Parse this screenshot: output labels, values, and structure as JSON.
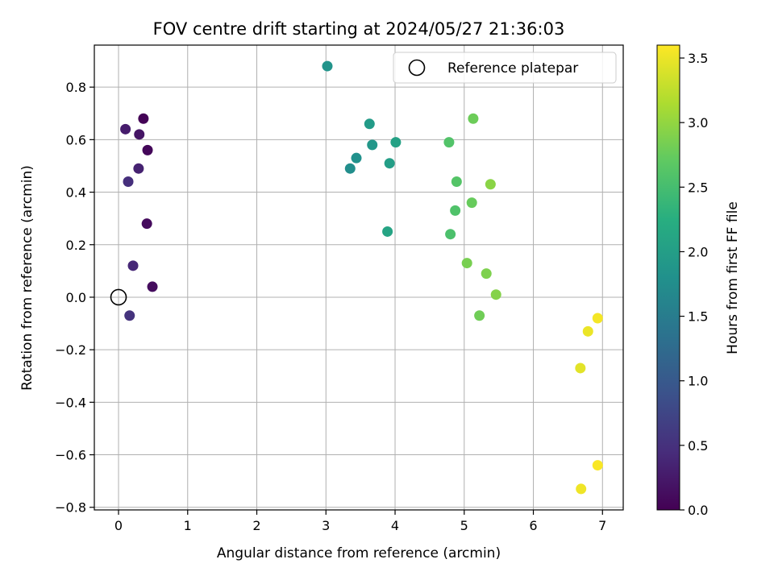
{
  "chart_data": {
    "type": "scatter",
    "title": "FOV centre drift starting at 2024/05/27 21:36:03",
    "xlabel": "Angular distance from reference (arcmin)",
    "ylabel": "Rotation from reference (arcmin)",
    "xlim": [
      -0.35,
      7.3
    ],
    "ylim": [
      -0.81,
      0.96
    ],
    "xticks": [
      0,
      1,
      2,
      3,
      4,
      5,
      6,
      7
    ],
    "yticks": [
      -0.8,
      -0.6,
      -0.4,
      -0.2,
      0.0,
      0.2,
      0.4,
      0.6,
      0.8
    ],
    "grid": true,
    "legend": {
      "position": "top-right",
      "label": "Reference platepar"
    },
    "reference": {
      "x": 0,
      "y": 0
    },
    "colorbar": {
      "label": "Hours from first FF file",
      "range": [
        0,
        3.6
      ],
      "ticks": [
        0.0,
        0.5,
        1.0,
        1.5,
        2.0,
        2.5,
        3.0,
        3.5
      ],
      "colormap": "viridis"
    },
    "points": [
      {
        "x": 0.36,
        "y": 0.68,
        "t": 0.02
      },
      {
        "x": 0.42,
        "y": 0.56,
        "t": 0.06
      },
      {
        "x": 0.41,
        "y": 0.28,
        "t": 0.1
      },
      {
        "x": 0.49,
        "y": 0.04,
        "t": 0.12
      },
      {
        "x": 0.3,
        "y": 0.62,
        "t": 0.2
      },
      {
        "x": 0.1,
        "y": 0.64,
        "t": 0.28
      },
      {
        "x": 0.29,
        "y": 0.49,
        "t": 0.34
      },
      {
        "x": 0.21,
        "y": 0.12,
        "t": 0.4
      },
      {
        "x": 0.14,
        "y": 0.44,
        "t": 0.48
      },
      {
        "x": 0.16,
        "y": -0.07,
        "t": 0.52
      },
      {
        "x": 3.02,
        "y": 0.88,
        "t": 1.85
      },
      {
        "x": 3.63,
        "y": 0.66,
        "t": 1.95
      },
      {
        "x": 3.35,
        "y": 0.49,
        "t": 1.75
      },
      {
        "x": 3.44,
        "y": 0.53,
        "t": 1.8
      },
      {
        "x": 3.67,
        "y": 0.58,
        "t": 1.9
      },
      {
        "x": 4.01,
        "y": 0.59,
        "t": 2.05
      },
      {
        "x": 3.92,
        "y": 0.51,
        "t": 2.0
      },
      {
        "x": 3.89,
        "y": 0.25,
        "t": 2.1
      },
      {
        "x": 4.78,
        "y": 0.59,
        "t": 2.6
      },
      {
        "x": 5.13,
        "y": 0.68,
        "t": 2.78
      },
      {
        "x": 4.89,
        "y": 0.44,
        "t": 2.62
      },
      {
        "x": 5.38,
        "y": 0.43,
        "t": 2.95
      },
      {
        "x": 5.11,
        "y": 0.36,
        "t": 2.75
      },
      {
        "x": 4.87,
        "y": 0.33,
        "t": 2.58
      },
      {
        "x": 4.8,
        "y": 0.24,
        "t": 2.55
      },
      {
        "x": 5.04,
        "y": 0.13,
        "t": 2.85
      },
      {
        "x": 5.32,
        "y": 0.09,
        "t": 2.88
      },
      {
        "x": 5.46,
        "y": 0.01,
        "t": 2.92
      },
      {
        "x": 5.22,
        "y": -0.07,
        "t": 2.8
      },
      {
        "x": 6.93,
        "y": -0.08,
        "t": 3.55
      },
      {
        "x": 6.79,
        "y": -0.13,
        "t": 3.5
      },
      {
        "x": 6.68,
        "y": -0.27,
        "t": 3.45
      },
      {
        "x": 6.93,
        "y": -0.64,
        "t": 3.58
      },
      {
        "x": 6.69,
        "y": -0.73,
        "t": 3.52
      }
    ]
  }
}
